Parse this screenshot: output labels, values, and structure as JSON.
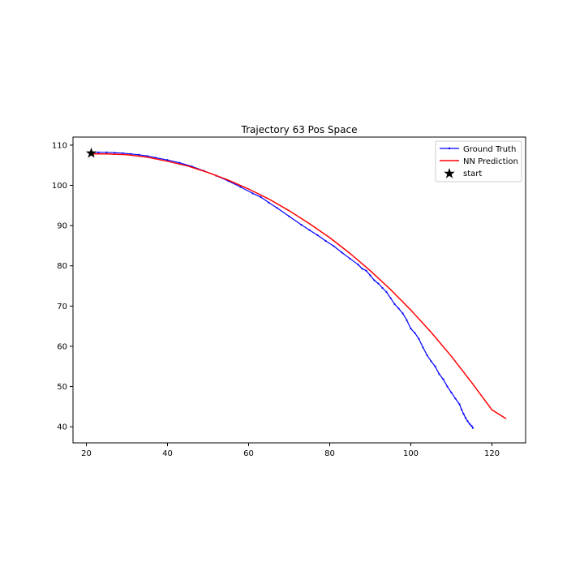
{
  "chart_data": {
    "type": "line",
    "title": "Trajectory 63 Pos Space",
    "xlabel": "",
    "ylabel": "",
    "xlim": [
      16.7,
      128.3
    ],
    "ylim": [
      36.0,
      112.0
    ],
    "xticks": [
      20,
      40,
      60,
      80,
      100,
      120
    ],
    "yticks": [
      40,
      50,
      60,
      70,
      80,
      90,
      100,
      110
    ],
    "grid": false,
    "legend_position": "top-right",
    "series": [
      {
        "name": "Ground Truth",
        "color": "#0000ff",
        "marker": "dot",
        "x": [
          21.2,
          23,
          25,
          27,
          29,
          31,
          33,
          35,
          37,
          40,
          43,
          46,
          49,
          52,
          55,
          58,
          61,
          63,
          65,
          67,
          70,
          73,
          75,
          77,
          79,
          81,
          83,
          85,
          87,
          88,
          89,
          90,
          91,
          92,
          93,
          94,
          95,
          96,
          97,
          98,
          99,
          100,
          101,
          102,
          103,
          104,
          105,
          106,
          107,
          108,
          109,
          110,
          111,
          112,
          112.5,
          113,
          113.5,
          114,
          114.5,
          115,
          115.3
        ],
        "y": [
          108.2,
          108.2,
          108.2,
          108.1,
          108.0,
          107.8,
          107.6,
          107.3,
          106.9,
          106.3,
          105.6,
          104.7,
          103.6,
          102.4,
          101.1,
          99.6,
          98.0,
          97.1,
          95.7,
          94.4,
          92.3,
          90.2,
          88.9,
          87.6,
          86.2,
          84.9,
          83.3,
          81.8,
          80.3,
          79.3,
          78.8,
          77.6,
          76.4,
          75.6,
          74.5,
          73.5,
          72.0,
          70.5,
          69.4,
          68.2,
          66.5,
          64.4,
          63.3,
          61.8,
          59.7,
          57.8,
          56.3,
          55.0,
          53.1,
          51.8,
          50.0,
          48.5,
          47.0,
          45.6,
          44.3,
          43.2,
          42.2,
          41.4,
          40.7,
          40.2,
          39.7
        ]
      },
      {
        "name": "NN Prediction",
        "color": "#ff0000",
        "marker": "none",
        "x": [
          21.2,
          25,
          30,
          35,
          40,
          45,
          50,
          55,
          60,
          65,
          70,
          75,
          80,
          85,
          90,
          95,
          100,
          105,
          110,
          115,
          120,
          123.5
        ],
        "y": [
          107.8,
          107.8,
          107.6,
          107.0,
          106.0,
          104.8,
          103.2,
          101.3,
          99.1,
          96.6,
          93.7,
          90.5,
          87.0,
          83.1,
          78.8,
          74.1,
          69.0,
          63.5,
          57.5,
          51.0,
          44.2,
          42.0
        ]
      }
    ],
    "start": {
      "name": "start",
      "x": 21.2,
      "y": 108.0,
      "marker": "star",
      "color": "#000000"
    }
  }
}
